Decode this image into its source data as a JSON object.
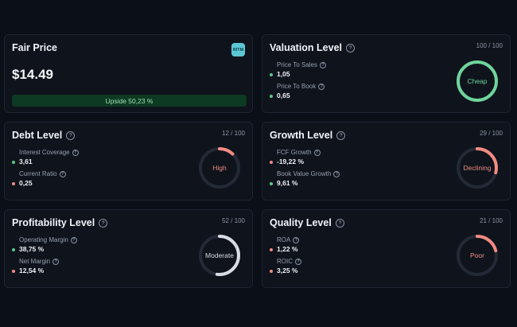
{
  "fair_price": {
    "title": "Fair Price",
    "ticker": "RITM",
    "price": "$14.49",
    "upside": "Upside 50,23 %"
  },
  "cards": {
    "valuation": {
      "title": "Valuation Level",
      "score": "100 / 100",
      "level": 1.0,
      "gauge_label": "Cheap",
      "gauge_color": "#6fd49b",
      "metrics": [
        {
          "label": "Price To Sales",
          "value": "1,05",
          "status": "green"
        },
        {
          "label": "Price To Book",
          "value": "0,65",
          "status": "green"
        }
      ]
    },
    "debt": {
      "title": "Debt Level",
      "score": "12 / 100",
      "level": 0.12,
      "gauge_label": "High",
      "gauge_color": "#f28b82",
      "metrics": [
        {
          "label": "Interest Coverage",
          "value": "3,61",
          "status": "green"
        },
        {
          "label": "Current Ratio",
          "value": "0,25",
          "status": "red"
        }
      ]
    },
    "growth": {
      "title": "Growth Level",
      "score": "29 / 100",
      "level": 0.29,
      "gauge_label": "Declining",
      "gauge_color": "#f28b82",
      "metrics": [
        {
          "label": "FCF Growth",
          "value": "-19,22 %",
          "status": "red"
        },
        {
          "label": "Book Value Growth",
          "value": "9,61 %",
          "status": "green"
        }
      ]
    },
    "profitability": {
      "title": "Profitability Level",
      "score": "52 / 100",
      "level": 0.52,
      "gauge_label": "Moderate",
      "gauge_color": "#d9dce2",
      "metrics": [
        {
          "label": "Operating Margin",
          "value": "38,75 %",
          "status": "green"
        },
        {
          "label": "Net Margin",
          "value": "12,54 %",
          "status": "red"
        }
      ]
    },
    "quality": {
      "title": "Quality Level",
      "score": "21 / 100",
      "level": 0.21,
      "gauge_label": "Poor",
      "gauge_color": "#f28b82",
      "metrics": [
        {
          "label": "ROA",
          "value": "1,22 %",
          "status": "red"
        },
        {
          "label": "ROIC",
          "value": "3,25 %",
          "status": "red"
        }
      ]
    }
  },
  "colors": {
    "track": "#232a36",
    "green": "#5ec98b",
    "red": "#f28b82"
  }
}
